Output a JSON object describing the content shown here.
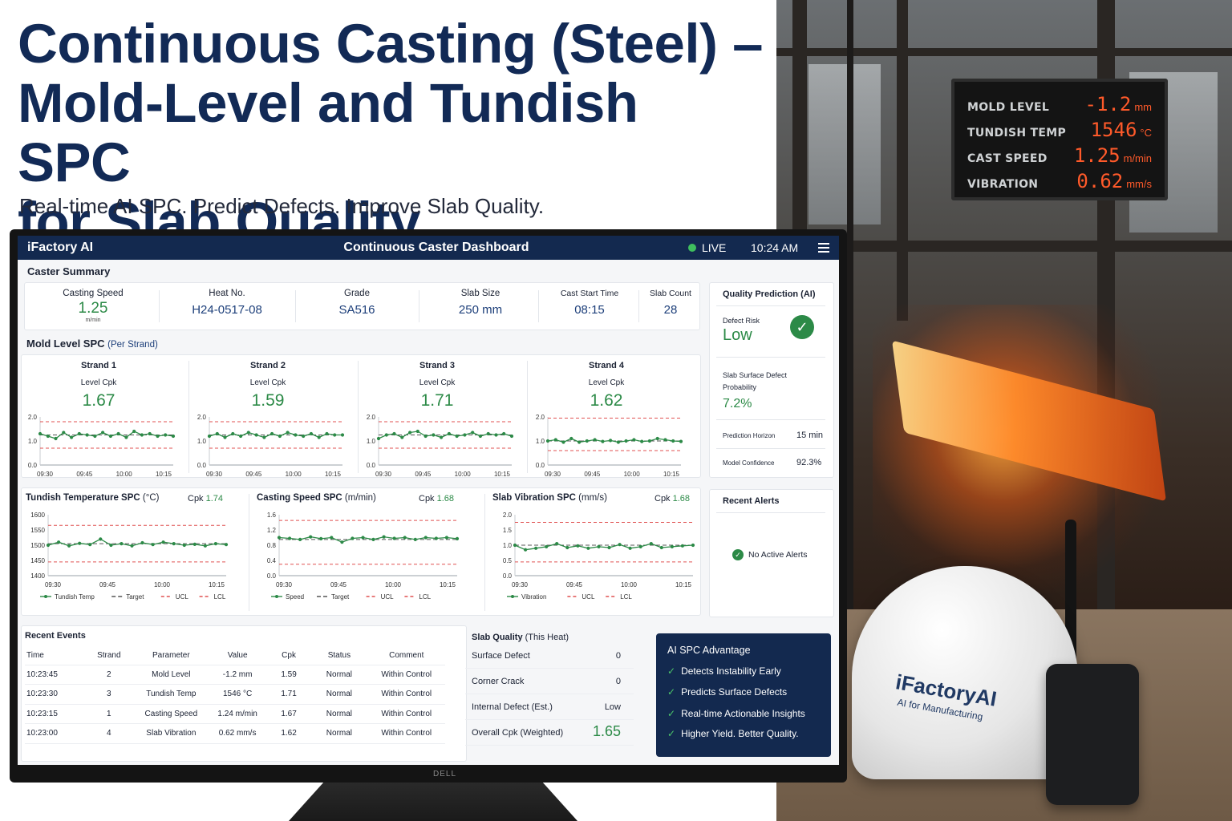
{
  "hero": {
    "title_line1": "Continuous Casting (Steel) –",
    "title_line2": "Mold-Level and Tundish SPC",
    "title_line3": "for Slab Quality",
    "subtitle": "Real-time AI SPC. Predict Defects. Improve Slab Quality."
  },
  "plant_sign": {
    "rows": [
      {
        "label": "MOLD LEVEL",
        "value": "-1.2",
        "unit": "mm"
      },
      {
        "label": "TUNDISH TEMP",
        "value": "1546",
        "unit": "°C"
      },
      {
        "label": "CAST SPEED",
        "value": "1.25",
        "unit": "m/min"
      },
      {
        "label": "VIBRATION",
        "value": "0.62",
        "unit": "mm/s"
      }
    ]
  },
  "helmet": {
    "brand": "iFactoryAI",
    "tagline": "AI for Manufacturing"
  },
  "monitor": {
    "bezel_logo": "DELL"
  },
  "header": {
    "brand": "iFactory AI",
    "title": "Continuous Caster Dashboard",
    "live": "LIVE",
    "time": "10:24 AM"
  },
  "summary": {
    "title": "Caster Summary",
    "kpis": [
      {
        "label": "Casting Speed",
        "value": "1.25",
        "unit": "m/min"
      },
      {
        "label": "Heat No.",
        "value": "H24-0517-08"
      },
      {
        "label": "Grade",
        "value": "SA516"
      },
      {
        "label": "Slab Size",
        "value": "250 mm"
      },
      {
        "label": "Cast Start Time",
        "value": "08:15"
      },
      {
        "label": "Slab Count",
        "value": "28"
      }
    ]
  },
  "mold_level": {
    "title": "Mold Level SPC",
    "subtitle": "(Per Strand)",
    "cpk_label": "Level Cpk",
    "y_ticks": [
      "2.0",
      "1.0",
      "0.0"
    ],
    "x_ticks": [
      "09:30",
      "09:45",
      "10:00",
      "10:15"
    ],
    "strands": [
      {
        "name": "Strand 1",
        "cpk": "1.67"
      },
      {
        "name": "Strand 2",
        "cpk": "1.59"
      },
      {
        "name": "Strand 3",
        "cpk": "1.71"
      },
      {
        "name": "Strand 4",
        "cpk": "1.62"
      }
    ]
  },
  "chart_data": [
    {
      "type": "line",
      "title": "Strand 1",
      "ylim": [
        0,
        2
      ],
      "ucl": 1.8,
      "lcl": 0.7,
      "target": 1.25,
      "series": [
        {
          "name": "Level",
          "values": [
            1.3,
            1.2,
            1.1,
            1.35,
            1.15,
            1.3,
            1.25,
            1.2,
            1.35,
            1.2,
            1.3,
            1.15,
            1.4,
            1.25,
            1.3,
            1.2,
            1.25,
            1.2
          ]
        }
      ]
    },
    {
      "type": "line",
      "title": "Strand 2",
      "ylim": [
        0,
        2
      ],
      "ucl": 1.8,
      "lcl": 0.7,
      "target": 1.25,
      "series": [
        {
          "name": "Level",
          "values": [
            1.2,
            1.3,
            1.15,
            1.3,
            1.2,
            1.35,
            1.25,
            1.15,
            1.3,
            1.2,
            1.35,
            1.25,
            1.2,
            1.3,
            1.15,
            1.3,
            1.25,
            1.25
          ]
        }
      ]
    },
    {
      "type": "line",
      "title": "Strand 3",
      "ylim": [
        0,
        2
      ],
      "ucl": 1.8,
      "lcl": 0.7,
      "target": 1.25,
      "series": [
        {
          "name": "Level",
          "values": [
            1.1,
            1.25,
            1.3,
            1.15,
            1.35,
            1.4,
            1.2,
            1.25,
            1.15,
            1.3,
            1.2,
            1.25,
            1.35,
            1.2,
            1.3,
            1.25,
            1.3,
            1.2
          ]
        }
      ]
    },
    {
      "type": "line",
      "title": "Strand 4",
      "ylim": [
        0,
        2
      ],
      "ucl": 1.95,
      "lcl": 0.6,
      "target": 1.0,
      "series": [
        {
          "name": "Level",
          "values": [
            1.0,
            1.05,
            0.95,
            1.1,
            0.95,
            1.0,
            1.05,
            0.98,
            1.02,
            0.95,
            1.0,
            1.05,
            0.98,
            1.0,
            1.1,
            1.05,
            1.0,
            0.98
          ]
        }
      ]
    },
    {
      "type": "line",
      "title": "Tundish Temperature SPC",
      "ylim": [
        1400,
        1600
      ],
      "ucl": 1565,
      "lcl": 1445,
      "target": 1505,
      "y_ticks": [
        "1600",
        "1550",
        "1500",
        "1450",
        "1400"
      ],
      "x_ticks": [
        "09:30",
        "09:45",
        "10:00",
        "10:15"
      ],
      "legend": [
        "Tundish Temp",
        "Target",
        "UCL",
        "LCL"
      ],
      "series": [
        {
          "name": "Tundish Temp",
          "values": [
            1500,
            1510,
            1498,
            1506,
            1502,
            1520,
            1500,
            1505,
            1498,
            1508,
            1502,
            1510,
            1505,
            1500,
            1503,
            1498,
            1505,
            1502
          ]
        }
      ]
    },
    {
      "type": "line",
      "title": "Casting Speed SPC",
      "ylim": [
        0,
        1.6
      ],
      "ucl": 1.45,
      "lcl": 0.3,
      "target": 0.95,
      "y_ticks": [
        "1.6",
        "1.2",
        "0.8",
        "0.4",
        "0.0"
      ],
      "x_ticks": [
        "09:30",
        "09:45",
        "10:00",
        "10:15"
      ],
      "legend": [
        "Speed",
        "Target",
        "UCL",
        "LCL"
      ],
      "series": [
        {
          "name": "Speed",
          "values": [
            1.0,
            0.98,
            0.95,
            1.02,
            0.97,
            1.0,
            0.88,
            0.98,
            1.0,
            0.95,
            1.02,
            0.98,
            1.0,
            0.95,
            1.0,
            0.98,
            1.0,
            0.97
          ]
        }
      ]
    },
    {
      "type": "line",
      "title": "Slab Vibration SPC",
      "ylim": [
        0,
        2.0
      ],
      "ucl": 1.75,
      "lcl": 0.45,
      "target": 1.0,
      "y_ticks": [
        "2.0",
        "1.5",
        "1.0",
        "0.5",
        "0.0"
      ],
      "x_ticks": [
        "09:30",
        "09:45",
        "10:00",
        "10:15"
      ],
      "legend": [
        "Vibration",
        "UCL",
        "LCL"
      ],
      "series": [
        {
          "name": "Vibration",
          "values": [
            1.0,
            0.85,
            0.9,
            0.95,
            1.05,
            0.92,
            0.98,
            0.9,
            0.95,
            0.92,
            1.02,
            0.9,
            0.95,
            1.05,
            0.92,
            0.95,
            0.98,
            1.0
          ]
        }
      ]
    }
  ],
  "mini_charts": [
    {
      "title": "Tundish Temperature SPC",
      "unit": "(°C)",
      "cpk_label": "Cpk",
      "cpk": "1.74"
    },
    {
      "title": "Casting Speed SPC",
      "unit": "(m/min)",
      "cpk_label": "Cpk",
      "cpk": "1.68"
    },
    {
      "title": "Slab Vibration SPC",
      "unit": "(mm/s)",
      "cpk_label": "Cpk",
      "cpk": "1.68"
    }
  ],
  "quality_prediction": {
    "title": "Quality Prediction (AI)",
    "defect_risk_label": "Defect Risk",
    "defect_risk_value": "Low",
    "surface_defect_label1": "Slab Surface Defect",
    "surface_defect_label2": "Probability",
    "surface_defect_value": "7.2%",
    "horizon_label": "Prediction Horizon",
    "horizon_value": "15 min",
    "confidence_label": "Model Confidence",
    "confidence_value": "92.3%"
  },
  "alerts": {
    "title": "Recent Alerts",
    "empty": "No Active Alerts"
  },
  "events": {
    "title": "Recent Events",
    "columns": [
      "Time",
      "Strand",
      "Parameter",
      "Value",
      "Cpk",
      "Status",
      "Comment"
    ],
    "rows": [
      [
        "10:23:45",
        "2",
        "Mold Level",
        "-1.2 mm",
        "1.59",
        "Normal",
        "Within Control"
      ],
      [
        "10:23:30",
        "3",
        "Tundish Temp",
        "1546 °C",
        "1.71",
        "Normal",
        "Within Control"
      ],
      [
        "10:23:15",
        "1",
        "Casting Speed",
        "1.24 m/min",
        "1.67",
        "Normal",
        "Within Control"
      ],
      [
        "10:23:00",
        "4",
        "Slab Vibration",
        "0.62 mm/s",
        "1.62",
        "Normal",
        "Within Control"
      ]
    ]
  },
  "slab_quality": {
    "title": "Slab Quality",
    "subtitle": "(This Heat)",
    "rows": [
      {
        "label": "Surface Defect",
        "value": "0"
      },
      {
        "label": "Corner Crack",
        "value": "0"
      },
      {
        "label": "Internal Defect (Est.)",
        "value": "Low"
      },
      {
        "label": "Overall Cpk (Weighted)",
        "value": "1.65"
      }
    ]
  },
  "advantage": {
    "title": "AI SPC Advantage",
    "items": [
      "Detects Instability Early",
      "Predicts Surface Defects",
      "Real-time Actionable Insights",
      "Higher Yield. Better Quality."
    ]
  },
  "colors": {
    "navy": "#13294f",
    "green": "#2c8a47",
    "limit_red": "#e05050"
  }
}
